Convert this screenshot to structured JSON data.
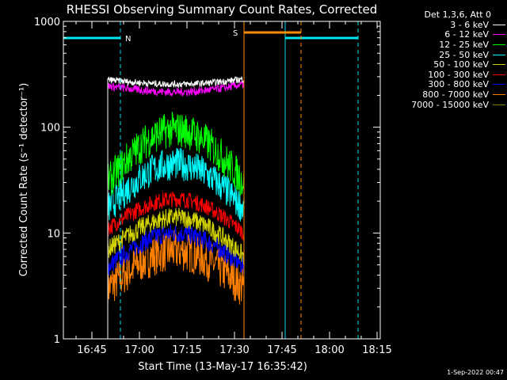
{
  "colors": {
    "background": "#000000",
    "axes": "#ffffff",
    "night_marker": "#00e5ee",
    "saa_marker": "#ff8c00"
  },
  "footer": {
    "timestamp": "1-Sep-2022 00:47"
  },
  "markers": {
    "night_label": "N",
    "saa_label": "S"
  },
  "chart_data": {
    "type": "line",
    "title": "RHESSI Observing Summary Count Rates, Corrected",
    "xlabel": "Start Time (13-May-17 16:35:42)",
    "ylabel": "Corrected Count Rate (s⁻¹ detector⁻¹)",
    "y_scale": "log",
    "ylim": [
      1,
      1000
    ],
    "xlim": [
      "16:36",
      "18:16"
    ],
    "x_ticks": [
      "16:45",
      "17:00",
      "17:15",
      "17:30",
      "17:45",
      "18:00",
      "18:15"
    ],
    "y_ticks": [
      "1",
      "10",
      "100",
      "1000"
    ],
    "grid": false,
    "legend": {
      "placement": "outside-top-right",
      "title": "Det 1,3,6, Att 0"
    },
    "observation_window": {
      "start": "16:50",
      "end": "17:33"
    },
    "series": [
      {
        "name": "3 - 6 keV",
        "color": "#ffffff",
        "start": 280,
        "center": 255,
        "end": 285,
        "noise": 0.04
      },
      {
        "name": "6 - 12 keV",
        "color": "#ff00ff",
        "start": 245,
        "center": 215,
        "end": 255,
        "noise": 0.05
      },
      {
        "name": "12 - 25 keV",
        "color": "#00ff00",
        "start": 30,
        "center": 95,
        "end": 30,
        "noise": 0.22
      },
      {
        "name": "25 - 50 keV",
        "color": "#00ffff",
        "start": 17,
        "center": 45,
        "end": 17,
        "noise": 0.2
      },
      {
        "name": "50 - 100 keV",
        "color": "#d2d200",
        "start": 7,
        "center": 14,
        "end": 6,
        "noise": 0.12
      },
      {
        "name": "100 - 300 keV",
        "color": "#ff0000",
        "start": 11,
        "center": 21,
        "end": 10,
        "noise": 0.1
      },
      {
        "name": "300 - 800 keV",
        "color": "#0000ff",
        "start": 4.8,
        "center": 10,
        "end": 4.8,
        "noise": 0.12
      },
      {
        "name": "800 - 7000 keV",
        "color": "#ff8000",
        "start": 3,
        "center": 6.8,
        "end": 3,
        "noise": 0.25
      },
      {
        "name": "7000 - 15000 keV",
        "color": "#808000",
        "start": 0,
        "center": 0,
        "end": 0,
        "noise": 0
      }
    ],
    "night_intervals": [
      {
        "start": "16:36",
        "end": "16:54"
      },
      {
        "start": "17:46",
        "end": "18:09"
      }
    ],
    "saa_intervals": [
      {
        "start": "17:33",
        "end": "17:51"
      }
    ]
  }
}
